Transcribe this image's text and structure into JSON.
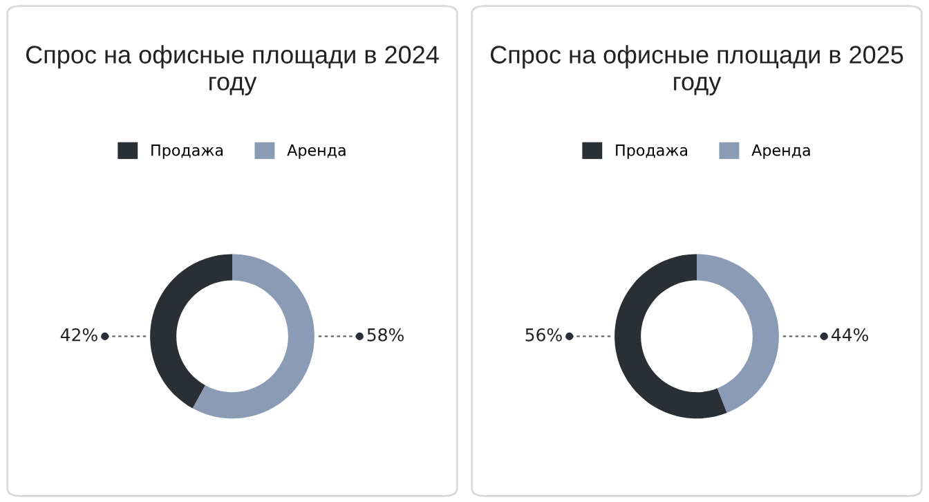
{
  "chart_data": [
    {
      "type": "donut",
      "title": "Спрос на офисные площади в 2024 году",
      "categories": [
        "Продажа",
        "Аренда"
      ],
      "values": [
        42,
        58
      ],
      "colors": [
        "#2a2e35",
        "#8a9bb5"
      ],
      "value_labels": [
        "42%",
        "58%"
      ],
      "legend": "top"
    },
    {
      "type": "donut",
      "title": "Спрос на офисные площади в 2025 году",
      "categories": [
        "Продажа",
        "Аренда"
      ],
      "values": [
        56,
        44
      ],
      "colors": [
        "#2a2e35",
        "#8a9bb5"
      ],
      "value_labels": [
        "56%",
        "44%"
      ],
      "legend": "top"
    }
  ]
}
